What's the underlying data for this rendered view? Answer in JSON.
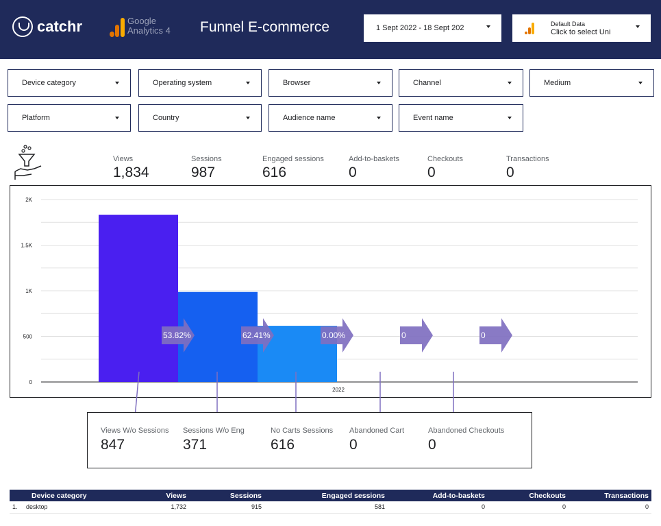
{
  "header": {
    "brand": "catchr",
    "ga_line1": "Google",
    "ga_line2": "Analytics 4",
    "title": "Funnel E-commerce",
    "date_range": "1 Sept 2022 - 18 Sept 202",
    "data_source_line1": "Default Data",
    "data_source_line2": "Click to select Uni",
    "colors": {
      "background": "#1f2a5a",
      "ga_orange": "#f9ab00",
      "ga_dark_orange": "#e37400"
    }
  },
  "filters": [
    {
      "label": "Device category"
    },
    {
      "label": "Operating system"
    },
    {
      "label": "Browser"
    },
    {
      "label": "Channel"
    },
    {
      "label": "Medium"
    },
    {
      "label": "Platform"
    },
    {
      "label": "Country"
    },
    {
      "label": "Audience name"
    },
    {
      "label": "Event name"
    }
  ],
  "metrics": [
    {
      "label": "Views",
      "value": "1,834"
    },
    {
      "label": "Sessions",
      "value": "987"
    },
    {
      "label": "Engaged sessions",
      "value": "616"
    },
    {
      "label": "Add-to-baskets",
      "value": "0"
    },
    {
      "label": "Checkouts",
      "value": "0"
    },
    {
      "label": "Transactions",
      "value": "0"
    }
  ],
  "chart_data": {
    "type": "bar",
    "categories": [
      "Views",
      "Sessions",
      "Engaged sessions",
      "Add-to-baskets",
      "Checkouts",
      "Transactions"
    ],
    "values": [
      1834,
      987,
      616,
      0,
      0,
      0
    ],
    "bar_colors": [
      "#4a1ff0",
      "#1560f0",
      "#1a8af5",
      "#1a8af5",
      "#1a8af5",
      "#1a8af5"
    ],
    "xlabel": "2022",
    "ylim": [
      0,
      2000
    ],
    "yticks": [
      0,
      500,
      1000,
      1500,
      2000
    ],
    "ytick_labels": [
      "0",
      "500",
      "1K",
      "1.5K",
      "2K"
    ],
    "grid": true,
    "conversion_labels": [
      "53.82%",
      "62.41%",
      "0.00%",
      "0",
      "0"
    ],
    "arrow_color": "#7f6fc0"
  },
  "losses": [
    {
      "label": "Views W/o Sessions",
      "value": "847"
    },
    {
      "label": "Sessions W/o Eng",
      "value": "371"
    },
    {
      "label": "No Carts Sessions",
      "value": "616"
    },
    {
      "label": "Abandoned Cart",
      "value": "0"
    },
    {
      "label": "Abandoned Checkouts",
      "value": "0"
    }
  ],
  "table": {
    "columns": [
      "Device category",
      "Views",
      "Sessions",
      "Engaged sessions",
      "Add-to-baskets",
      "Checkouts",
      "Transactions"
    ],
    "rows": [
      {
        "index": "1.",
        "cells": [
          "desktop",
          "1,732",
          "915",
          "581",
          "0",
          "0",
          "0"
        ]
      }
    ]
  }
}
